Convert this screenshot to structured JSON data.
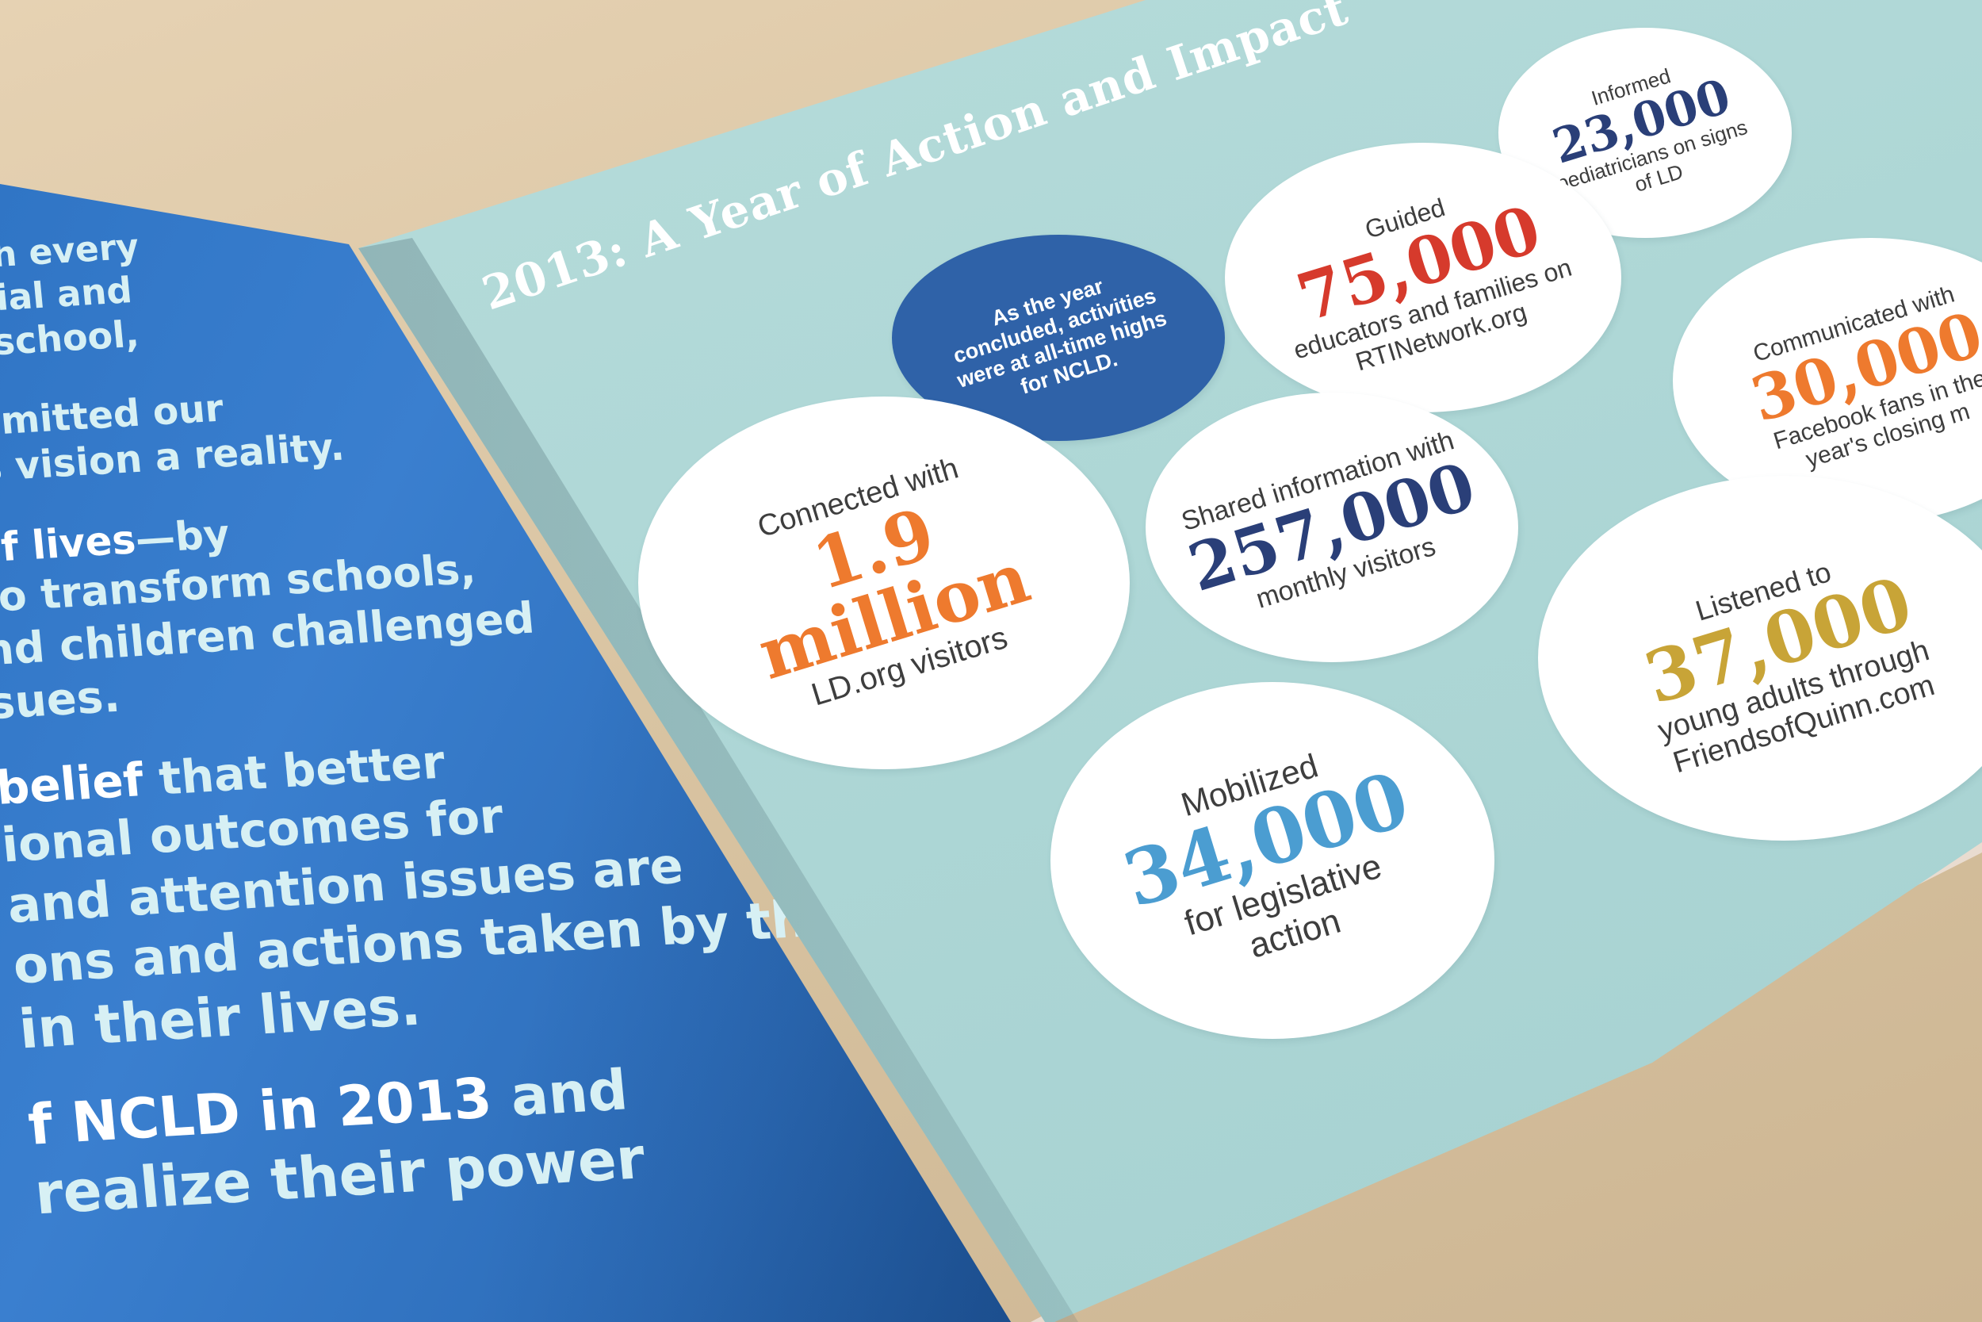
{
  "left_page": {
    "lines": [
      {
        "text": "uch every",
        "bright": false
      },
      {
        "text": "ocial and",
        "bright": false
      },
      {
        "text": "n school,",
        "bright": false
      },
      {
        "text": "mmitted our",
        "bright": false
      },
      {
        "text": "is vision a reality.",
        "bright": false
      },
      {
        "text": "of lives",
        "bright": true,
        "tail": "—by"
      },
      {
        "text": "to transform schools,",
        "bright": false
      },
      {
        "text": "nd children challenged",
        "bright": false
      },
      {
        "text": "sues.",
        "bright": false
      },
      {
        "text": "belief",
        "bright": true,
        "tail": " that better"
      },
      {
        "text": "ional outcomes for",
        "bright": false
      },
      {
        "text": "and attention issues are",
        "bright": false
      },
      {
        "text": "ons and actions taken by the",
        "bright": false
      },
      {
        "text": "in their lives.",
        "bright": false
      },
      {
        "text": "f NCLD in 2013",
        "bright": true,
        "tail": " and"
      },
      {
        "text": "realize their power",
        "bright": false
      }
    ]
  },
  "right_page": {
    "title": "2013: A Year of Action and Impact",
    "colors": {
      "page": "#aed7d6",
      "orange": "#ee7a2e",
      "red": "#d63a2c",
      "navy": "#2a3f78",
      "blue": "#4b9dd1",
      "gold": "#c8a437",
      "dark_circle": "#2f62a8"
    },
    "circles": {
      "intro": {
        "text": "As the year concluded, activities were at all-time highs for NCLD."
      },
      "pediatricians": {
        "before": "Informed",
        "number": "23,000",
        "after": "pediatricians on signs of LD"
      },
      "educators": {
        "before": "Guided",
        "number": "75,000",
        "after": "educators and families on RTINetwork.org"
      },
      "facebook": {
        "before": "Communicated with",
        "number": "30,000",
        "after": "Facebook fans in the year's closing m"
      },
      "ldorg": {
        "before": "Connected with",
        "number": "1.9 million",
        "after": "LD.org visitors"
      },
      "shared": {
        "before": "Shared information with",
        "number": "257,000",
        "after": "monthly visitors"
      },
      "quinn": {
        "before": "Listened to",
        "number": "37,000",
        "after": "young adults through FriendsofQuinn.com"
      },
      "mobilized": {
        "before": "Mobilized",
        "number": "34,000",
        "after": "for legislative action"
      }
    }
  }
}
